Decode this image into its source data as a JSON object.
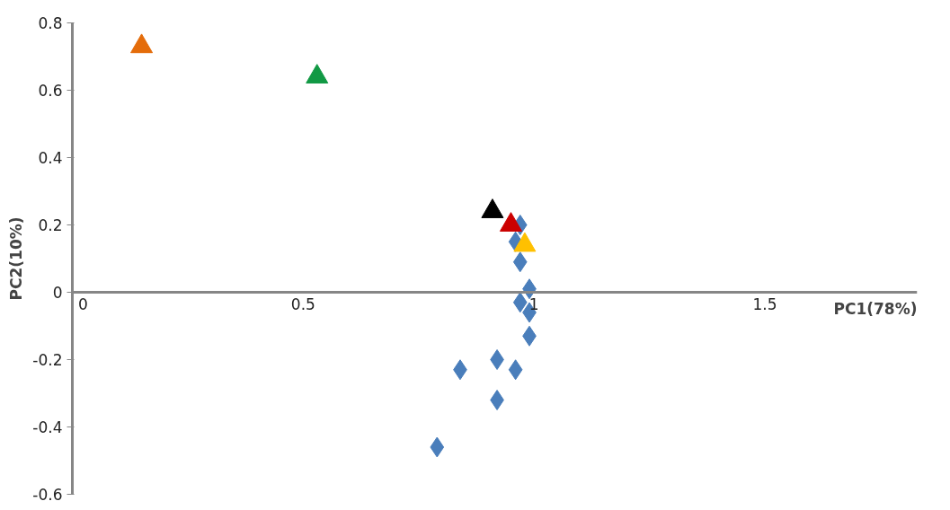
{
  "chart_data": {
    "type": "scatter",
    "xlabel": "PC1(78%)",
    "ylabel": "PC2(10%)",
    "xlim": [
      0,
      1.83
    ],
    "ylim": [
      -0.6,
      0.8
    ],
    "xticks": [
      0,
      0.5,
      1,
      1.5
    ],
    "yticks": [
      -0.6,
      -0.4,
      -0.2,
      0,
      0.2,
      0.4,
      0.6,
      0.8
    ],
    "grid": false,
    "series": [
      {
        "color": "#4a7ebb",
        "marker": "diamond",
        "x": [
          0.97,
          0.96,
          0.97,
          0.99,
          0.97,
          0.99,
          0.99,
          0.92,
          0.96,
          0.84,
          0.92,
          0.79
        ],
        "values": [
          0.2,
          0.15,
          0.09,
          0.01,
          -0.03,
          -0.06,
          -0.13,
          -0.2,
          -0.23,
          -0.23,
          -0.32,
          -0.46
        ]
      },
      {
        "color": "#e46c0a",
        "marker": "triangle",
        "x": [
          0.15
        ],
        "values": [
          0.73
        ]
      },
      {
        "color": "#119944",
        "marker": "triangle",
        "x": [
          0.53
        ],
        "values": [
          0.64
        ]
      },
      {
        "color": "#000000",
        "marker": "triangle",
        "x": [
          0.91
        ],
        "values": [
          0.24
        ]
      },
      {
        "color": "#cc0000",
        "marker": "triangle",
        "x": [
          0.95
        ],
        "values": [
          0.2
        ]
      },
      {
        "color": "#ffc000",
        "marker": "triangle",
        "x": [
          0.98
        ],
        "values": [
          0.14
        ]
      }
    ]
  }
}
